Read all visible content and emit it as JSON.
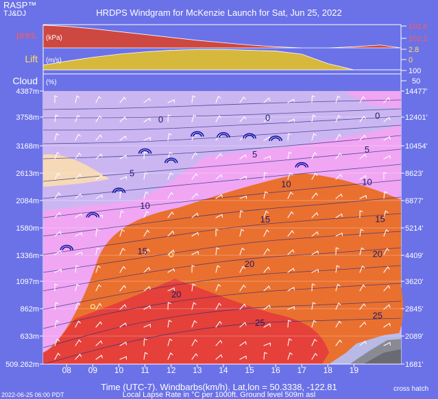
{
  "header": {
    "brand": "RASP™",
    "credit": "TJ&DJ",
    "title": "HRDPS Windgram for McKenzie Launch for Sat, Jun 25, 2022"
  },
  "footer": {
    "xlabel": "Time (UTC-7). Windbarbs(km/h). Lat,lon = 50.3338, -122.81",
    "legend_note": "cross hatch",
    "bottom_line_cut": "Local Lapse Rate in °C per 1000ft.   Ground level 509m asl",
    "bottom_timestamp_cut": "2022-06-25 06:00 PDT"
  },
  "colors": {
    "background": "#6b72e8",
    "pink": "#f0a6f2",
    "lavender": "#ccb6f2",
    "peach": "#f6d9b6",
    "orange": "#ea7030",
    "red": "#e6403a",
    "pressure_red": "#cc4840",
    "lift_yellow": "#d6b93c",
    "barb": "#ffffff",
    "contour_label": "#1a1a6a",
    "thermal_icon": "#1018a0",
    "scale_red": "#ff5a5a",
    "scale_yellow": "#ffe060"
  },
  "chart_data": [
    {
      "type": "area",
      "panel": "pressure",
      "label": "pres.",
      "unit_note": "(kPa)",
      "x": [
        7,
        8,
        9,
        10,
        11,
        12,
        13,
        14,
        15,
        16,
        17,
        18,
        19,
        20
      ],
      "values": [
        102.59,
        102.57,
        102.53,
        102.48,
        102.43,
        102.38,
        102.33,
        102.29,
        102.25,
        102.22,
        102.2,
        102.2,
        102.22,
        102.25
      ],
      "ylim": [
        102.2,
        102.6
      ],
      "right_ticks": [
        "102.6",
        "102.2"
      ]
    },
    {
      "type": "area",
      "panel": "lift",
      "label": "Lift",
      "unit_note": "(m/s)",
      "x": [
        7,
        8,
        9,
        10,
        11,
        12,
        13,
        14,
        15,
        16,
        17,
        18,
        19
      ],
      "values": [
        0.6,
        1.1,
        1.6,
        2.0,
        2.3,
        2.5,
        2.6,
        2.6,
        2.5,
        2.4,
        2.0,
        0.8,
        0.0
      ],
      "ylim": [
        0,
        2.8
      ],
      "right_ticks": [
        "2.8",
        "0"
      ]
    },
    {
      "type": "area",
      "panel": "cloud",
      "label": "Cloud",
      "unit_note": "(%)",
      "x": [
        7,
        20
      ],
      "values": [
        0,
        0
      ],
      "ylim": [
        0,
        100
      ],
      "right_ticks": [
        "100",
        "50"
      ]
    },
    {
      "type": "heatmap",
      "panel": "windgram",
      "title": "HRDPS Windgram for McKenzie Launch for Sat, Jun 25, 2022",
      "xlabel": "Time (UTC-7). Windbarbs(km/h). Lat,lon = 50.3338, -122.81",
      "x_ticks": [
        "08",
        "09",
        "10",
        "11",
        "12",
        "13",
        "14",
        "15",
        "16",
        "17",
        "18",
        "19"
      ],
      "x_tick_values": [
        8,
        9,
        10,
        11,
        12,
        13,
        14,
        15,
        16,
        17,
        18,
        19
      ],
      "xlim": [
        7.1,
        20.8
      ],
      "ylim": [
        509.262,
        4387
      ],
      "y_ticks_m": [
        "4387m",
        "3758m",
        "3168m",
        "2613m",
        "2084m",
        "1580m",
        "1336m",
        "1097m",
        "862m",
        "633m",
        "509.262m"
      ],
      "y_tick_values_m": [
        4387,
        3758,
        3168,
        2613,
        2084,
        1580,
        1336,
        1097,
        862,
        633,
        509.262
      ],
      "y_ticks_ft": [
        "14477'",
        "12401'",
        "10454'",
        "8623'",
        "6877'",
        "5214'",
        "4409'",
        "3620'",
        "2845'",
        "2089'",
        "1681'"
      ],
      "lapse_zones": [
        {
          "name": "pink",
          "value_range": "background"
        },
        {
          "name": "lavender",
          "upper_region": true
        },
        {
          "name": "peach",
          "value_range": "small pocket"
        },
        {
          "name": "orange",
          "value_range": "5-8"
        },
        {
          "name": "red",
          "value_range": "> 8"
        }
      ],
      "contour_labels": [
        {
          "text": "0",
          "x": 11.6,
          "y": 3645
        },
        {
          "text": "0",
          "x": 15.7,
          "y": 3680
        },
        {
          "text": "0",
          "x": 19.9,
          "y": 3720
        },
        {
          "text": "5",
          "x": 10.5,
          "y": 2555
        },
        {
          "text": "5",
          "x": 15.2,
          "y": 2930
        },
        {
          "text": "5",
          "x": 19.5,
          "y": 3030
        },
        {
          "text": "10",
          "x": 11.0,
          "y": 1935
        },
        {
          "text": "10",
          "x": 16.4,
          "y": 2345
        },
        {
          "text": "10",
          "x": 19.5,
          "y": 2380
        },
        {
          "text": "15",
          "x": 10.9,
          "y": 1345
        },
        {
          "text": "15",
          "x": 15.6,
          "y": 1680
        },
        {
          "text": "15",
          "x": 20.0,
          "y": 1690
        },
        {
          "text": "20",
          "x": 12.2,
          "y": 960
        },
        {
          "text": "20",
          "x": 15.0,
          "y": 1230
        },
        {
          "text": "20",
          "x": 19.9,
          "y": 1320
        },
        {
          "text": "25",
          "x": 15.4,
          "y": 720
        },
        {
          "text": "25",
          "x": 19.9,
          "y": 780
        }
      ],
      "thermal_tops": [
        {
          "x": 8.0,
          "y": 1400
        },
        {
          "x": 9.0,
          "y": 1810
        },
        {
          "x": 10.0,
          "y": 2270
        },
        {
          "x": 11.0,
          "y": 3050
        },
        {
          "x": 12.0,
          "y": 2860
        },
        {
          "x": 13.0,
          "y": 3400
        },
        {
          "x": 14.0,
          "y": 3380
        },
        {
          "x": 15.0,
          "y": 3360
        },
        {
          "x": 16.0,
          "y": 3310
        },
        {
          "x": 17.0,
          "y": 2770
        }
      ],
      "cloud_base_markers": [
        {
          "x": 9.0,
          "y": 880
        },
        {
          "x": 12.0,
          "y": 1340
        }
      ]
    }
  ]
}
